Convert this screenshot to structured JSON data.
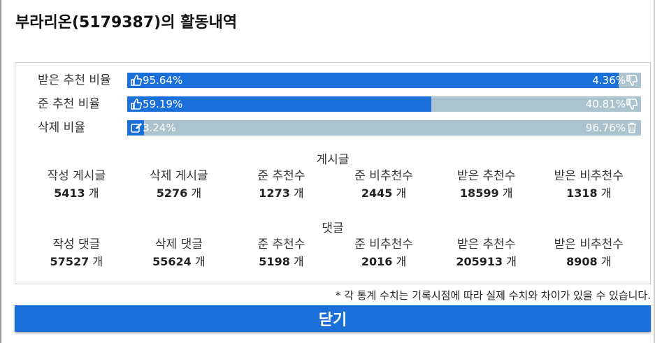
{
  "title": "부라리온(5179387)의 활동내역",
  "ratios": [
    {
      "label": "받은 추천 비율",
      "left_text": "95.64%",
      "right_text": "4.36%",
      "fraction": 0.9564,
      "left_icon": "thumbs-up-icon",
      "right_icon": "thumbs-down-icon"
    },
    {
      "label": "준 추천 비율",
      "left_text": "59.19%",
      "right_text": "40.81%",
      "fraction": 0.5919,
      "left_icon": "thumbs-up-icon",
      "right_icon": "thumbs-down-icon"
    },
    {
      "label": "삭제 비율",
      "left_text": "3.24%",
      "right_text": "96.76%",
      "fraction": 0.0324,
      "left_icon": "edit-icon",
      "right_icon": "trash-icon"
    }
  ],
  "posts": {
    "title": "게시글",
    "stats": [
      {
        "label": "작성 게시글",
        "value": "5413",
        "unit": "개"
      },
      {
        "label": "삭제 게시글",
        "value": "5276",
        "unit": "개"
      },
      {
        "label": "준 추천수",
        "value": "1273",
        "unit": "개"
      },
      {
        "label": "준 비추천수",
        "value": "2445",
        "unit": "개"
      },
      {
        "label": "받은 추천수",
        "value": "18599",
        "unit": "개"
      },
      {
        "label": "받은 비추천수",
        "value": "1318",
        "unit": "개"
      }
    ]
  },
  "comments": {
    "title": "댓글",
    "stats": [
      {
        "label": "작성 댓글",
        "value": "57527",
        "unit": "개"
      },
      {
        "label": "삭제 댓글",
        "value": "55624",
        "unit": "개"
      },
      {
        "label": "준 추천수",
        "value": "5198",
        "unit": "개"
      },
      {
        "label": "준 비추천수",
        "value": "2016",
        "unit": "개"
      },
      {
        "label": "받은 추천수",
        "value": "205913",
        "unit": "개"
      },
      {
        "label": "받은 비추천수",
        "value": "8908",
        "unit": "개"
      }
    ]
  },
  "note": "* 각 통계 수치는 기록시점에 따라 실제 수치와 차이가 있을 수 있습니다.",
  "close_label": "닫기",
  "colors": {
    "fill": "#1b6fd8",
    "track": "#aac3cf",
    "button": "#1b6fd8"
  }
}
